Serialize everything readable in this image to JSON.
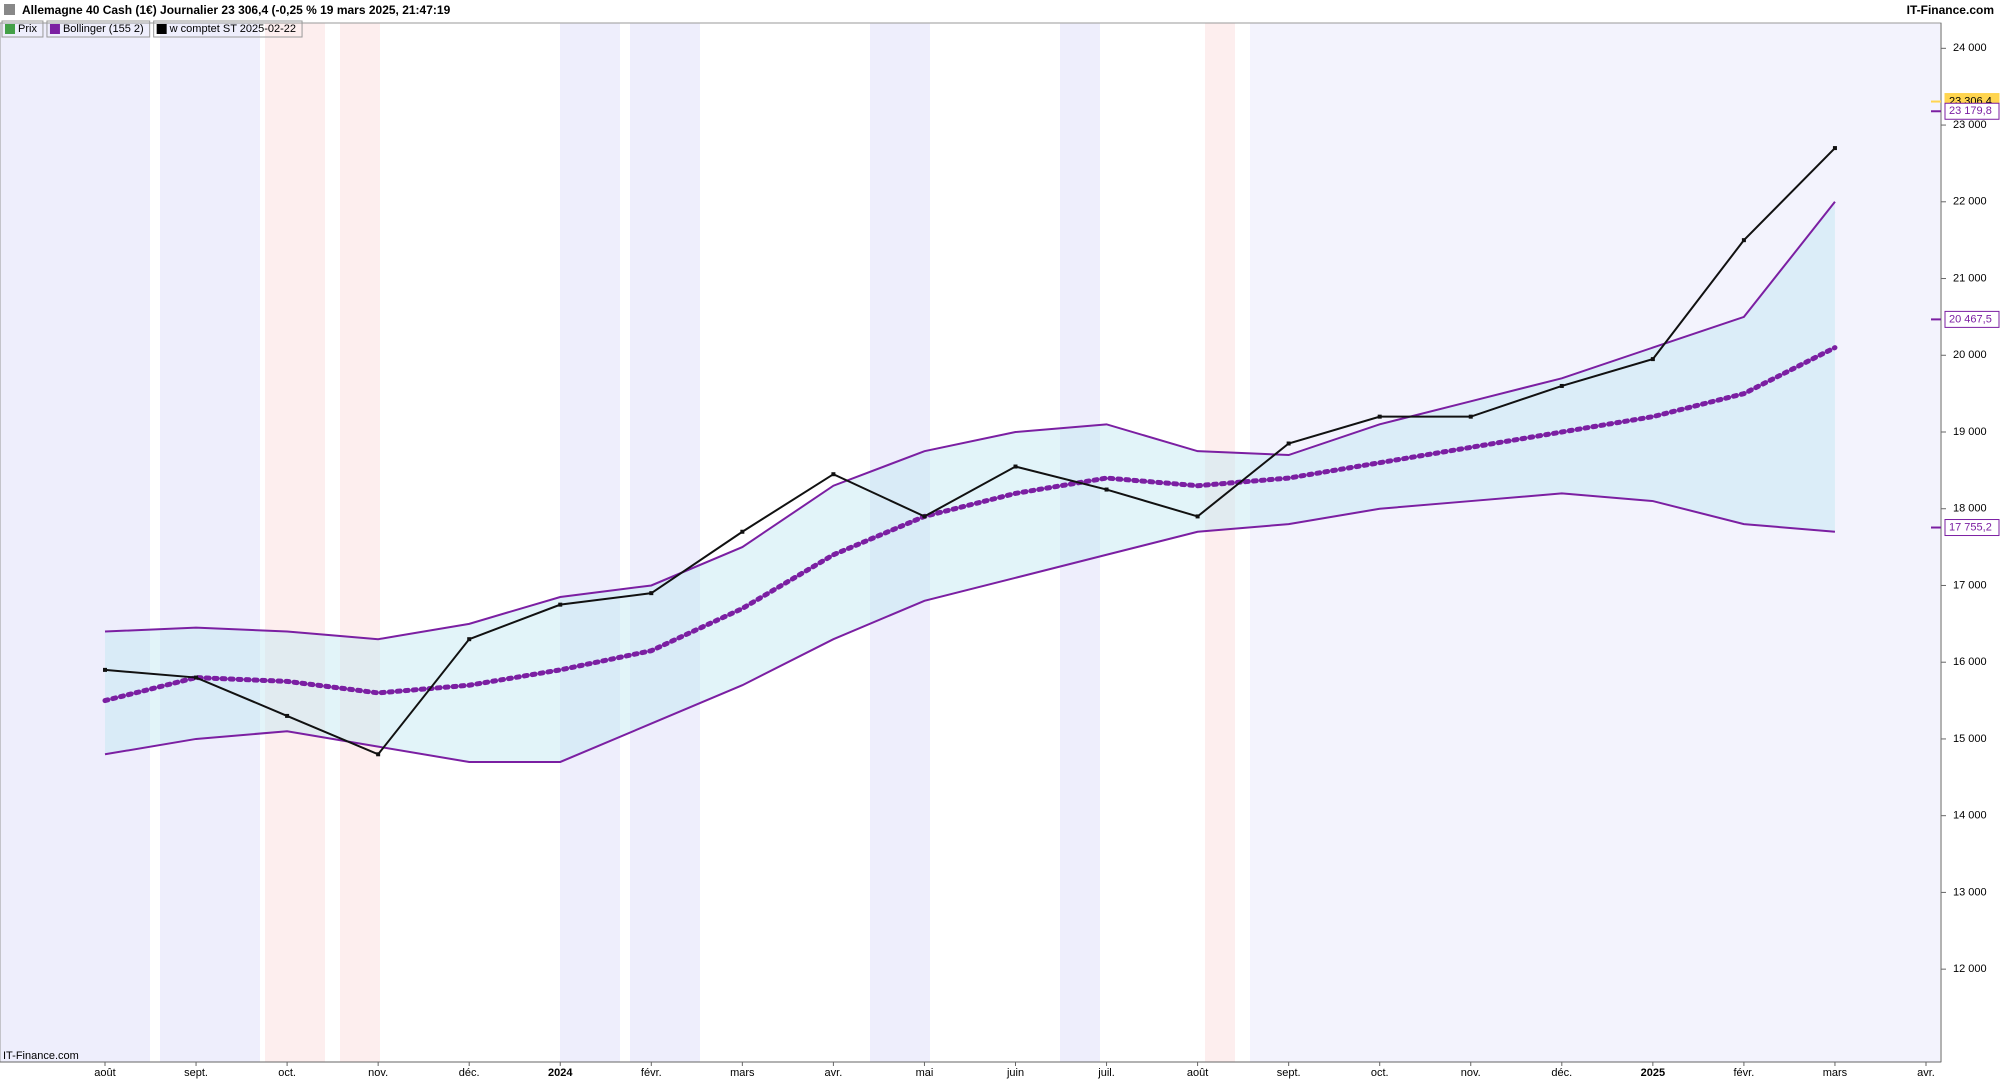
{
  "chart_data": {
    "type": "line",
    "title": "Allemagne 40 Cash (1€) Journalier 23 306,4 (-0,25 % 19 mars 2025, 21:47:19",
    "source": "IT-Finance.com",
    "watermark": "IT-Finance.com",
    "categories": [
      "août",
      "sept.",
      "oct.",
      "nov.",
      "déc.",
      "2024",
      "févr.",
      "mars",
      "avr.",
      "mai",
      "juin",
      "juil.",
      "août",
      "sept.",
      "oct.",
      "nov.",
      "déc.",
      "2025",
      "févr.",
      "mars",
      "avr."
    ],
    "series": [
      {
        "name": "Prix",
        "color": "#43a047",
        "line_color": "#111111",
        "values": [
          15900,
          15800,
          15300,
          14800,
          16300,
          16750,
          16900,
          17700,
          18450,
          17900,
          18550,
          18250,
          17900,
          18850,
          19200,
          19200,
          19600,
          19950,
          21500,
          22700,
          null
        ]
      },
      {
        "name": "Bollinger (155 2)",
        "color": "#7b1fa2",
        "upper": [
          16400,
          16450,
          16400,
          16300,
          16500,
          16850,
          17000,
          17500,
          18300,
          18750,
          19000,
          19100,
          18750,
          18700,
          19100,
          19400,
          19700,
          20100,
          20500,
          22000,
          null
        ],
        "middle": [
          15500,
          15800,
          15750,
          15600,
          15700,
          15900,
          16150,
          16700,
          17400,
          17900,
          18200,
          18400,
          18300,
          18400,
          18600,
          18800,
          19000,
          19200,
          19500,
          20100,
          null
        ],
        "lower": [
          14800,
          15000,
          15100,
          14900,
          14700,
          14700,
          15200,
          15700,
          16300,
          16800,
          17100,
          17400,
          17700,
          17800,
          18000,
          18100,
          18200,
          18100,
          17800,
          17700,
          null
        ]
      },
      {
        "name": "w comptet ST 2025-02-22",
        "color": "#000000"
      }
    ],
    "badges": [
      {
        "value": 23306.4,
        "label": "23 306,4",
        "color": "#ffd54f"
      },
      {
        "value": 23179.8,
        "label": "23 179,8",
        "color": "#7b1fa2"
      },
      {
        "value": 20467.5,
        "label": "20 467,5",
        "color": "#7b1fa2"
      },
      {
        "value": 17755.2,
        "label": "17 755,2",
        "color": "#7b1fa2"
      }
    ],
    "ylim": [
      10790,
      24330
    ],
    "yticks": [
      {
        "value": 12000,
        "label": "12 000"
      },
      {
        "value": 13000,
        "label": "13 000"
      },
      {
        "value": 14000,
        "label": "14 000"
      },
      {
        "value": 15000,
        "label": "15 000"
      },
      {
        "value": 16000,
        "label": "16 000"
      },
      {
        "value": 17000,
        "label": "17 000"
      },
      {
        "value": 18000,
        "label": "18 000"
      },
      {
        "value": 19000,
        "label": "19 000"
      },
      {
        "value": 20000,
        "label": "20 000"
      },
      {
        "value": 21000,
        "label": "21 000"
      },
      {
        "value": 22000,
        "label": "22 000"
      },
      {
        "value": 23000,
        "label": "23 000"
      },
      {
        "value": 24000,
        "label": "24 000"
      }
    ],
    "grid": false
  }
}
